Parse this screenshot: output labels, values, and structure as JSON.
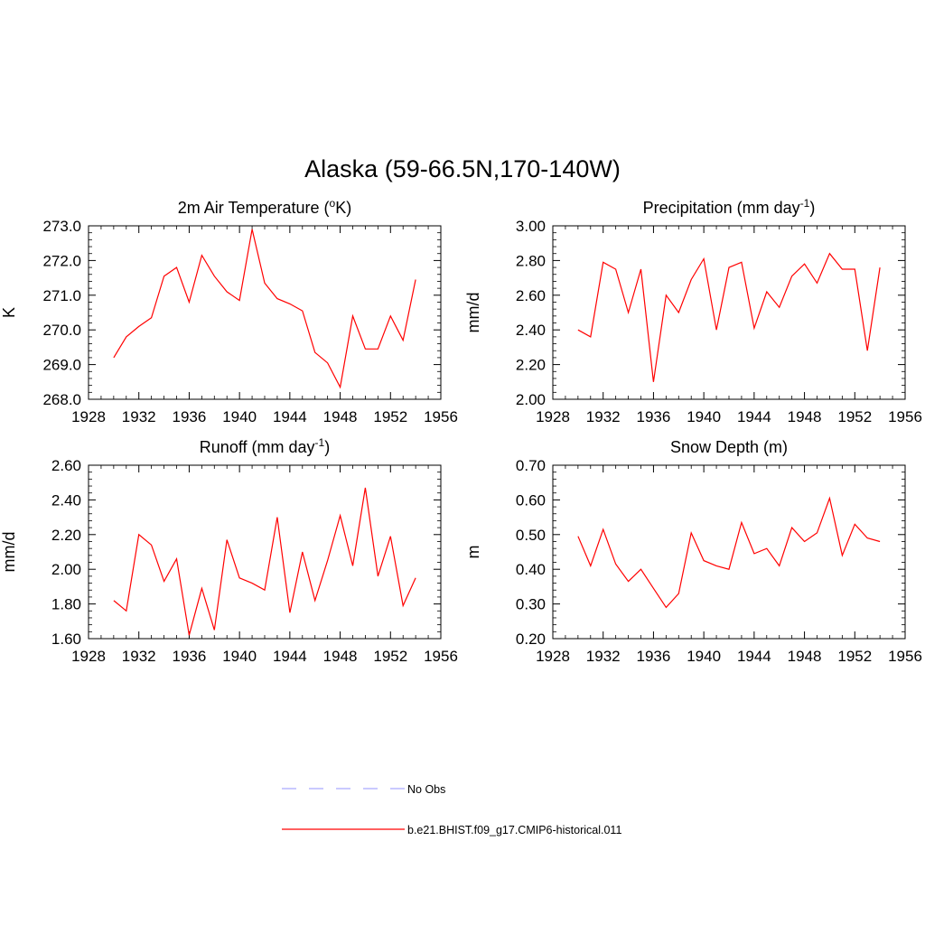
{
  "page": {
    "title": "Alaska (59-66.5N,170-140W)"
  },
  "colors": {
    "model_line": "#ff0000",
    "obs_line": "#aaaaff",
    "axis": "#000000"
  },
  "legend": {
    "placement": "bottom-center",
    "entries": [
      {
        "label": "No Obs",
        "style": "dashed",
        "color": "#aaaaff"
      },
      {
        "label": "b.e21.BHIST.f09_g17.CMIP6-historical.011",
        "style": "solid",
        "color": "#ff0000"
      }
    ]
  },
  "chart_data": [
    {
      "type": "line",
      "title": "2m Air Temperature (",
      "title_sup": "o",
      "title_after": "K)",
      "ylabel": "K",
      "xlim": [
        1928,
        1956
      ],
      "ylim": [
        268.0,
        273.0
      ],
      "xticks": [
        1928,
        1932,
        1936,
        1940,
        1944,
        1948,
        1952,
        1956
      ],
      "yticks": [
        "268.0",
        "269.0",
        "270.0",
        "271.0",
        "272.0",
        "273.0"
      ],
      "grid": false,
      "series": [
        {
          "x": [
            1930,
            1931,
            1932,
            1933,
            1934,
            1935,
            1936,
            1937,
            1938,
            1939,
            1940,
            1941,
            1942,
            1943,
            1944,
            1945,
            1946,
            1947,
            1948,
            1949,
            1950,
            1951,
            1952,
            1953,
            1954
          ],
          "values": [
            269.2,
            269.8,
            270.1,
            270.35,
            271.55,
            271.8,
            270.8,
            272.15,
            271.55,
            271.1,
            270.85,
            272.9,
            271.35,
            270.9,
            270.75,
            270.55,
            269.35,
            269.05,
            268.35,
            270.4,
            269.45,
            269.45,
            270.4,
            269.7,
            271.45
          ]
        }
      ]
    },
    {
      "type": "line",
      "title": "Precipitation (mm day",
      "title_sup": "-1",
      "title_after": ")",
      "ylabel": "mm/d",
      "xlim": [
        1928,
        1956
      ],
      "ylim": [
        2.0,
        3.0
      ],
      "xticks": [
        1928,
        1932,
        1936,
        1940,
        1944,
        1948,
        1952,
        1956
      ],
      "yticks": [
        "2.00",
        "2.20",
        "2.40",
        "2.60",
        "2.80",
        "3.00"
      ],
      "grid": false,
      "series": [
        {
          "x": [
            1930,
            1931,
            1932,
            1933,
            1934,
            1935,
            1936,
            1937,
            1938,
            1939,
            1940,
            1941,
            1942,
            1943,
            1944,
            1945,
            1946,
            1947,
            1948,
            1949,
            1950,
            1951,
            1952,
            1953,
            1954
          ],
          "values": [
            2.4,
            2.36,
            2.79,
            2.75,
            2.5,
            2.75,
            2.1,
            2.6,
            2.5,
            2.69,
            2.81,
            2.4,
            2.76,
            2.79,
            2.41,
            2.62,
            2.53,
            2.71,
            2.78,
            2.67,
            2.84,
            2.75,
            2.75,
            2.28,
            2.76
          ]
        }
      ]
    },
    {
      "type": "line",
      "title": "Runoff (mm day",
      "title_sup": "-1",
      "title_after": ")",
      "ylabel": "mm/d",
      "xlim": [
        1928,
        1956
      ],
      "ylim": [
        1.6,
        2.6
      ],
      "xticks": [
        1928,
        1932,
        1936,
        1940,
        1944,
        1948,
        1952,
        1956
      ],
      "yticks": [
        "1.60",
        "1.80",
        "2.00",
        "2.20",
        "2.40",
        "2.60"
      ],
      "grid": false,
      "series": [
        {
          "x": [
            1930,
            1931,
            1932,
            1933,
            1934,
            1935,
            1936,
            1937,
            1938,
            1939,
            1940,
            1941,
            1942,
            1943,
            1944,
            1945,
            1946,
            1947,
            1948,
            1949,
            1950,
            1951,
            1952,
            1953,
            1954
          ],
          "values": [
            1.82,
            1.76,
            2.2,
            2.14,
            1.93,
            2.06,
            1.62,
            1.89,
            1.65,
            2.17,
            1.95,
            1.92,
            1.88,
            2.3,
            1.75,
            2.1,
            1.82,
            2.05,
            2.31,
            2.02,
            2.47,
            1.96,
            2.19,
            1.79,
            1.95
          ]
        }
      ]
    },
    {
      "type": "line",
      "title": "Snow Depth (m)",
      "title_sup": "",
      "title_after": "",
      "ylabel": "m",
      "xlim": [
        1928,
        1956
      ],
      "ylim": [
        0.2,
        0.7
      ],
      "xticks": [
        1928,
        1932,
        1936,
        1940,
        1944,
        1948,
        1952,
        1956
      ],
      "yticks": [
        "0.20",
        "0.30",
        "0.40",
        "0.50",
        "0.60",
        "0.70"
      ],
      "grid": false,
      "series": [
        {
          "x": [
            1930,
            1931,
            1932,
            1933,
            1934,
            1935,
            1936,
            1937,
            1938,
            1939,
            1940,
            1941,
            1942,
            1943,
            1944,
            1945,
            1946,
            1947,
            1948,
            1949,
            1950,
            1951,
            1952,
            1953,
            1954
          ],
          "values": [
            0.495,
            0.41,
            0.515,
            0.415,
            0.365,
            0.4,
            0.345,
            0.29,
            0.33,
            0.505,
            0.425,
            0.41,
            0.4,
            0.535,
            0.445,
            0.46,
            0.41,
            0.52,
            0.48,
            0.505,
            0.605,
            0.44,
            0.53,
            0.49,
            0.48
          ]
        }
      ]
    }
  ]
}
